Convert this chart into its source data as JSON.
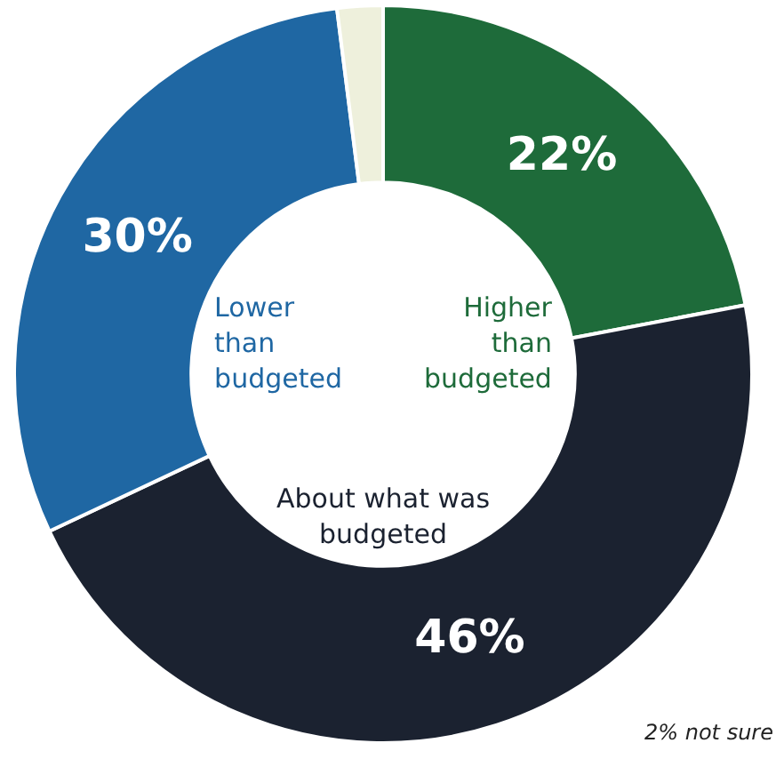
{
  "chart_data": {
    "type": "donut",
    "categories": [
      "Higher than budgeted",
      "About what was budgeted",
      "Lower than budgeted",
      null
    ],
    "values": [
      22,
      46,
      30,
      2
    ],
    "colors": [
      "#1e6b3a",
      "#1b2230",
      "#1f67a3",
      "#eef0dc"
    ],
    "value_labels": [
      "22%",
      "46%",
      "30%",
      null
    ],
    "annotations": [
      "2% not sure"
    ],
    "legend": false
  }
}
